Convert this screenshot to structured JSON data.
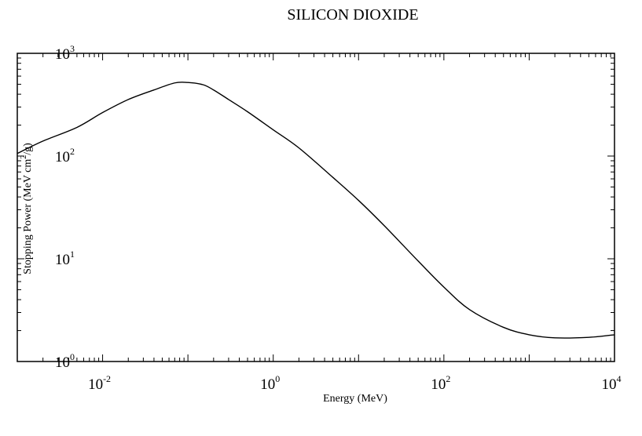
{
  "chart_data": {
    "type": "line",
    "title": "SILICON DIOXIDE",
    "xlabel": "Energy (MeV)",
    "ylabel_parts": [
      "Stopping Power (MeV cm",
      "2",
      "/g)"
    ],
    "xscale": "log",
    "yscale": "log",
    "xlim": [
      0.001,
      10000
    ],
    "ylim": [
      1,
      1000
    ],
    "grid": false,
    "legend": "none",
    "x_ticks": [
      {
        "value": 0.01,
        "base": "10",
        "exp": "-2"
      },
      {
        "value": 1,
        "base": "10",
        "exp": "0"
      },
      {
        "value": 100,
        "base": "10",
        "exp": "2"
      },
      {
        "value": 10000,
        "base": "10",
        "exp": "4"
      }
    ],
    "y_ticks": [
      {
        "value": 1,
        "base": "10",
        "exp": "0"
      },
      {
        "value": 10,
        "base": "10",
        "exp": "1"
      },
      {
        "value": 100,
        "base": "10",
        "exp": "2"
      },
      {
        "value": 1000,
        "base": "10",
        "exp": "3"
      }
    ],
    "series": [
      {
        "color": "#000000",
        "x": [
          0.001,
          0.002,
          0.005,
          0.01,
          0.02,
          0.04,
          0.07,
          0.1,
          0.15,
          0.2,
          0.3,
          0.5,
          1,
          2,
          5,
          10,
          20,
          50,
          100,
          200,
          500,
          1000,
          2000,
          5000,
          10000
        ],
        "y": [
          106,
          140,
          190,
          265,
          355,
          440,
          515,
          520,
          495,
          440,
          355,
          270,
          180,
          120,
          62,
          37,
          21,
          9.5,
          5.3,
          3.2,
          2.15,
          1.82,
          1.7,
          1.72,
          1.82
        ]
      }
    ]
  }
}
